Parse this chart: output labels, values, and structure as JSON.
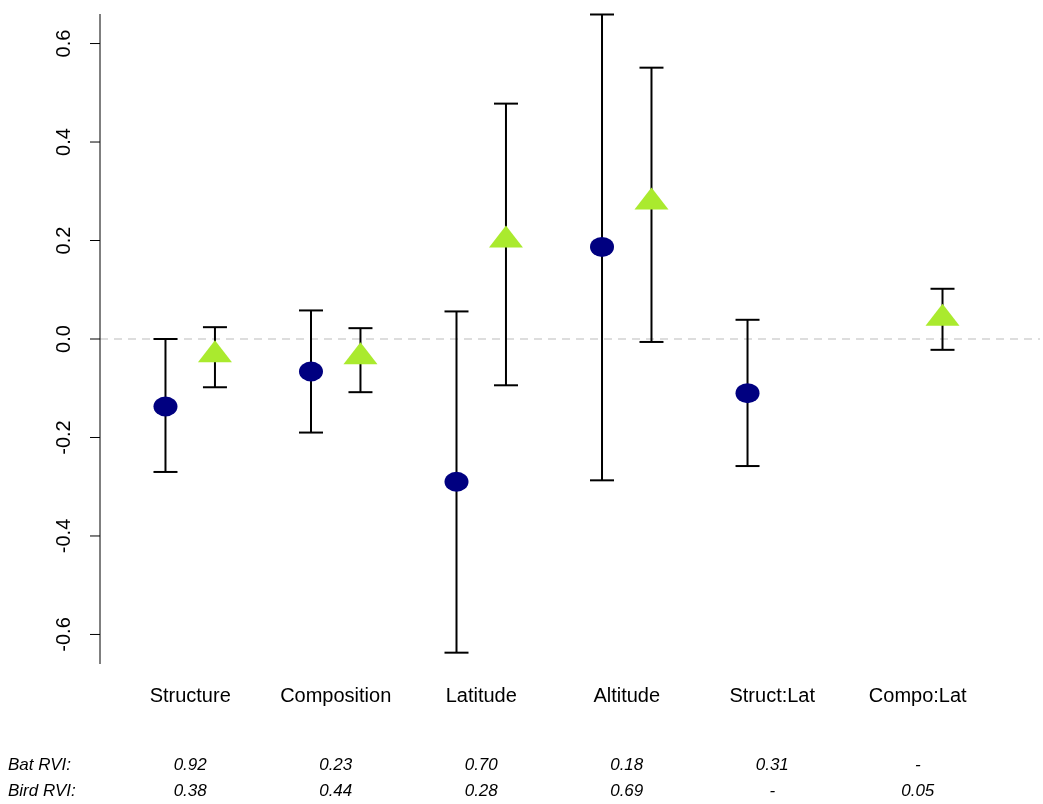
{
  "chart_data": {
    "type": "scatter",
    "categories": [
      "Structure",
      "Composition",
      "Latitude",
      "Altitude",
      "Struct:Lat",
      "Compo:Lat"
    ],
    "series": [
      {
        "color": "#000080",
        "marker": "circle",
        "values": [
          -0.137,
          -0.066,
          -0.29,
          0.187,
          -0.11,
          null
        ],
        "errors": [
          [
            -0.27,
            0.0
          ],
          [
            -0.19,
            0.058
          ],
          [
            -0.637,
            0.056
          ],
          [
            -0.287,
            0.659
          ],
          [
            -0.258,
            0.039
          ],
          null
        ]
      },
      {
        "color": "#aaea2e",
        "marker": "triangle",
        "values": [
          -0.033,
          -0.037,
          0.2,
          0.277,
          null,
          0.041
        ],
        "errors": [
          [
            -0.098,
            0.024
          ],
          [
            -0.108,
            0.022
          ],
          [
            -0.094,
            0.478
          ],
          [
            -0.006,
            0.551
          ],
          null,
          [
            -0.022,
            0.102
          ]
        ]
      }
    ],
    "ylim": [
      -0.66,
      0.66
    ],
    "yticks": [
      {
        "value": -0.6,
        "label": "-0.6"
      },
      {
        "value": -0.4,
        "label": "-0.4"
      },
      {
        "value": -0.2,
        "label": "-0.2"
      },
      {
        "value": 0,
        "label": "0.0"
      },
      {
        "value": 0.2,
        "label": "0.2"
      },
      {
        "value": 0.4,
        "label": "0.4"
      },
      {
        "value": 0.6,
        "label": "0.6"
      }
    ],
    "ref_lines": [
      {
        "axis": "y",
        "value": 0,
        "color": "#bbbbbb",
        "line_style": "dashed"
      }
    ],
    "grid": false,
    "legend": false,
    "annotations": [
      "Bat RVI:",
      "0.92",
      "0.23",
      "0.70",
      "0.18",
      "0.31",
      "-",
      "Bird RVI:",
      "0.38",
      "0.44",
      "0.28",
      "0.69",
      "-",
      "0.05"
    ]
  }
}
